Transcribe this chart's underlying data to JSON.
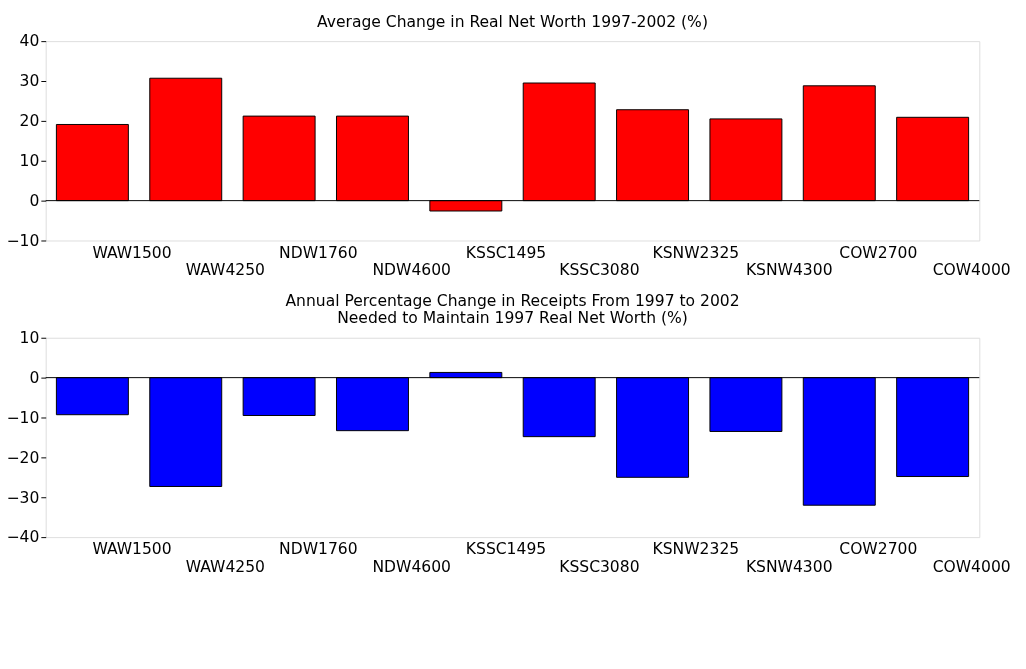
{
  "chart_data": [
    {
      "type": "bar",
      "title": "Average Change in Real Net Worth 1997-2002 (%)",
      "categories": [
        "WAW1500",
        "WAW4250",
        "NDW1760",
        "NDW4600",
        "KSSC1495",
        "KSSC3080",
        "KSNW2325",
        "KSNW4300",
        "COW2700",
        "COW4000"
      ],
      "values": [
        19.1,
        30.7,
        21.2,
        21.2,
        -2.6,
        29.5,
        22.8,
        20.5,
        28.8,
        20.9
      ],
      "color": "#ff0000",
      "ylim": [
        -10,
        40
      ],
      "yticks": [
        -10,
        0,
        10,
        20,
        30,
        40
      ],
      "grid": false,
      "ref_lines": [
        {
          "axis": "y",
          "value": 0,
          "color": "#000000"
        }
      ]
    },
    {
      "type": "bar",
      "title": "Annual Percentage Change in Receipts From 1997 to 2002\nNeeded to Maintain 1997 Real Net Worth (%)",
      "categories": [
        "WAW1500",
        "WAW4250",
        "NDW1760",
        "NDW4600",
        "KSSC1495",
        "KSSC3080",
        "KSNW2325",
        "KSNW4300",
        "COW2700",
        "COW4000"
      ],
      "values": [
        -9.3,
        -27.3,
        -9.5,
        -13.3,
        1.3,
        -14.8,
        -25.0,
        -13.5,
        -32.0,
        -24.8
      ],
      "color": "#0000ff",
      "ylim": [
        -40,
        10
      ],
      "yticks": [
        -40,
        -30,
        -20,
        -10,
        0,
        10
      ],
      "grid": false,
      "ref_lines": [
        {
          "axis": "y",
          "value": 0,
          "color": "#000000"
        }
      ]
    }
  ]
}
